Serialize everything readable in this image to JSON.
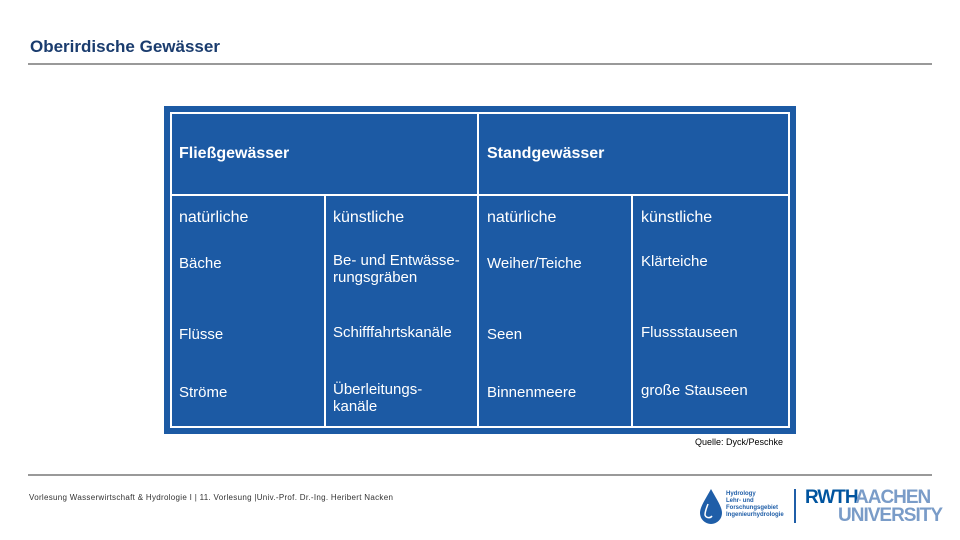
{
  "header": {
    "title": "Oberirdische Gewässer"
  },
  "table": {
    "groups": [
      "Fließgewässer",
      "Standgewässer"
    ],
    "columns": [
      "natürliche",
      "künstliche",
      "natürliche",
      "künstliche"
    ],
    "rows": [
      [
        "Bäche",
        "Be- und Entwässe-\nrungsgräben",
        "Weiher/Teiche",
        "Klärteiche"
      ],
      [
        "Flüsse",
        "Schifffahrtskanäle",
        "Seen",
        "Flussstauseen"
      ],
      [
        "Ströme",
        "Überleitungs-\nkanäle",
        "Binnenmeere",
        "große Stauseen"
      ]
    ]
  },
  "source": "Quelle: Dyck/Peschke",
  "footer": {
    "text": "Vorlesung Wasserwirtschaft & Hydrologie I | 11. Vorlesung |Univ.-Prof. Dr.-Ing. Heribert Nacken"
  },
  "logos": {
    "hydrology": [
      "Hydrology",
      "Lehr- und",
      "Forschungsgebiet",
      "Ingenieurhydrologie"
    ],
    "rwth": [
      "RWTH",
      "AACHEN",
      "UNIVERSITY"
    ]
  }
}
